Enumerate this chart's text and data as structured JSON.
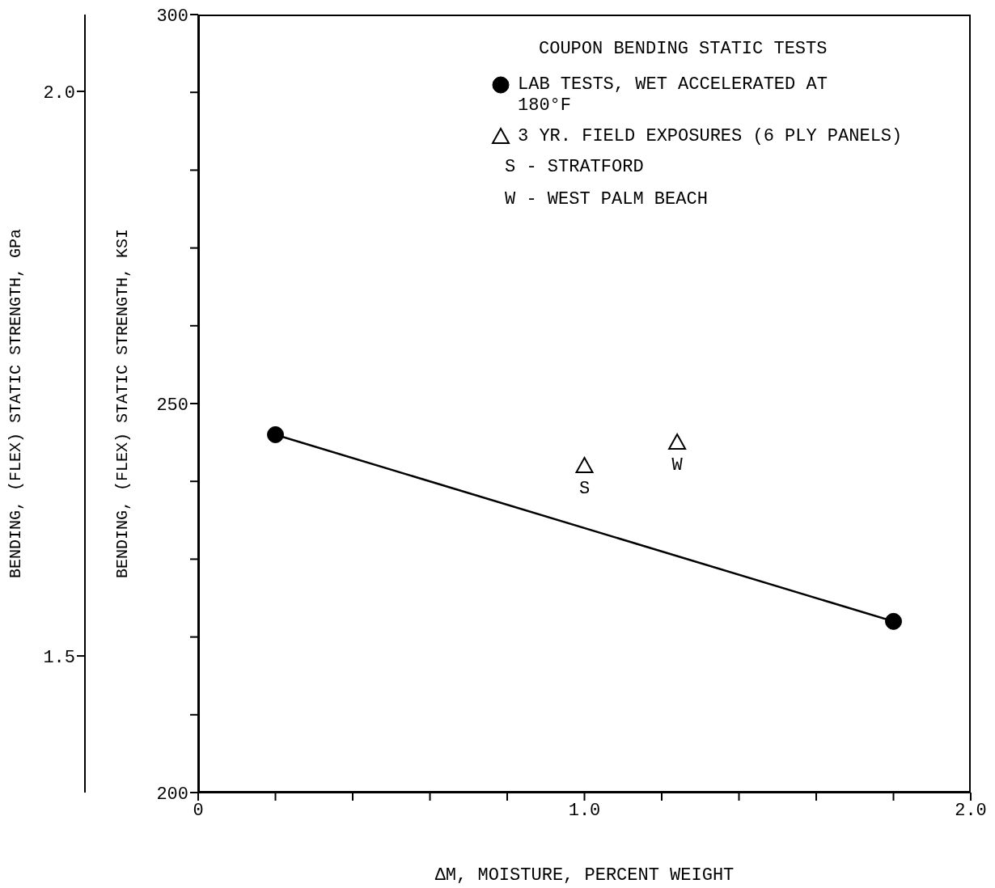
{
  "chart_data": {
    "type": "line",
    "xlabel": "ΔM, MOISTURE, PERCENT WEIGHT",
    "ylabel": "BENDING, (FLEX) STATIC STRENGTH, KSI",
    "y2label": "BENDING, (FLEX) STATIC STRENGTH, GPa",
    "legend_title": "COUPON BENDING STATIC TESTS",
    "series": [
      {
        "name": "LAB TESTS, WET ACCELERATED AT 180°F",
        "color": "#000000",
        "marker": "circle",
        "x": [
          0.2,
          1.8
        ],
        "values": [
          246,
          222
        ]
      },
      {
        "name": "3 YR. FIELD EXPOSURES (6 PLY PANELS)",
        "type": "scatter",
        "color": "#000000",
        "marker": "triangle",
        "x": [
          1.0,
          1.24
        ],
        "values": [
          242,
          245
        ]
      }
    ],
    "annotations": [
      "S - STRATFORD",
      "W - WEST PALM BEACH",
      {
        "text": "S",
        "x": 1.0,
        "y": 242
      },
      {
        "text": "W",
        "x": 1.24,
        "y": 245
      }
    ],
    "xlim": [
      0,
      2
    ],
    "xticks": [
      0,
      {
        "value": 0.2,
        "label": null
      },
      {
        "value": 0.4,
        "label": null
      },
      {
        "value": 0.6,
        "label": null
      },
      {
        "value": 0.8,
        "label": null
      },
      {
        "value": 1,
        "label": "1.0"
      },
      {
        "value": 1.2,
        "label": null
      },
      {
        "value": 1.4,
        "label": null
      },
      {
        "value": 1.6,
        "label": null
      },
      {
        "value": 1.8,
        "label": null
      },
      {
        "value": 2,
        "label": "2.0"
      }
    ],
    "ylim": [
      200,
      300
    ],
    "yticks": [
      200,
      {
        "value": 210,
        "label": null
      },
      {
        "value": 220,
        "label": null
      },
      {
        "value": 230,
        "label": null
      },
      {
        "value": 240,
        "label": null
      },
      250,
      {
        "value": 260,
        "label": null
      },
      {
        "value": 270,
        "label": null
      },
      {
        "value": 280,
        "label": null
      },
      {
        "value": 290,
        "label": null
      },
      300
    ],
    "y2lim": [
      1.379,
      2.068
    ],
    "y2ticks": [
      {
        "value": 1.5,
        "label": "1.5"
      },
      {
        "value": 2,
        "label": "2.0"
      }
    ],
    "legend": "top right"
  }
}
